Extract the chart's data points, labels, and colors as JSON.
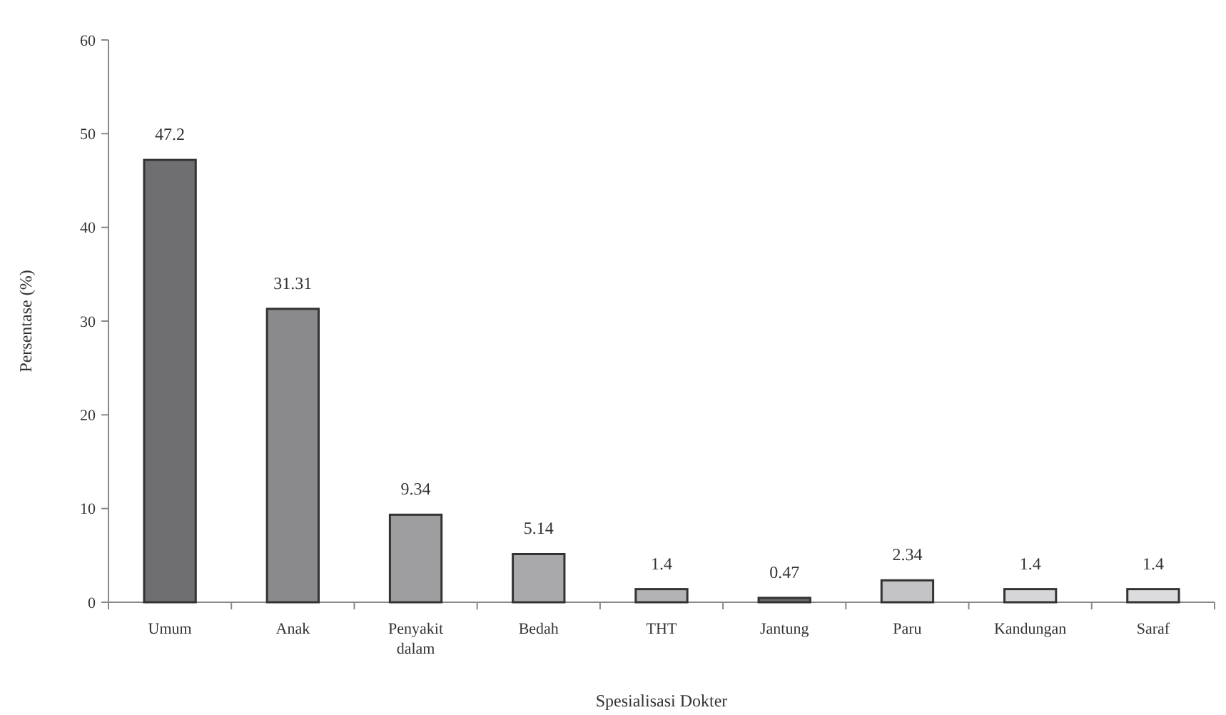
{
  "chart_data": {
    "type": "bar",
    "xlabel": "Spesialisasi Dokter",
    "ylabel": "Persentase (%)",
    "categories": [
      "Umum",
      "Anak",
      "Penyakit dalam",
      "Bedah",
      "THT",
      "Jantung",
      "Paru",
      "Kandungan",
      "Saraf"
    ],
    "values": [
      47.2,
      31.31,
      9.34,
      5.14,
      1.4,
      0.47,
      2.34,
      1.4,
      1.4
    ],
    "colors": [
      "#6f6f72",
      "#8a8a8d",
      "#9e9ea0",
      "#a9a9ab",
      "#b3b3b5",
      "#6a6a6a",
      "#c4c4c6",
      "#d6d6d8",
      "#dcdcde"
    ],
    "ylim": [
      0,
      60
    ],
    "yticks": [
      0,
      10,
      20,
      30,
      40,
      50,
      60
    ],
    "data_labels": true
  }
}
